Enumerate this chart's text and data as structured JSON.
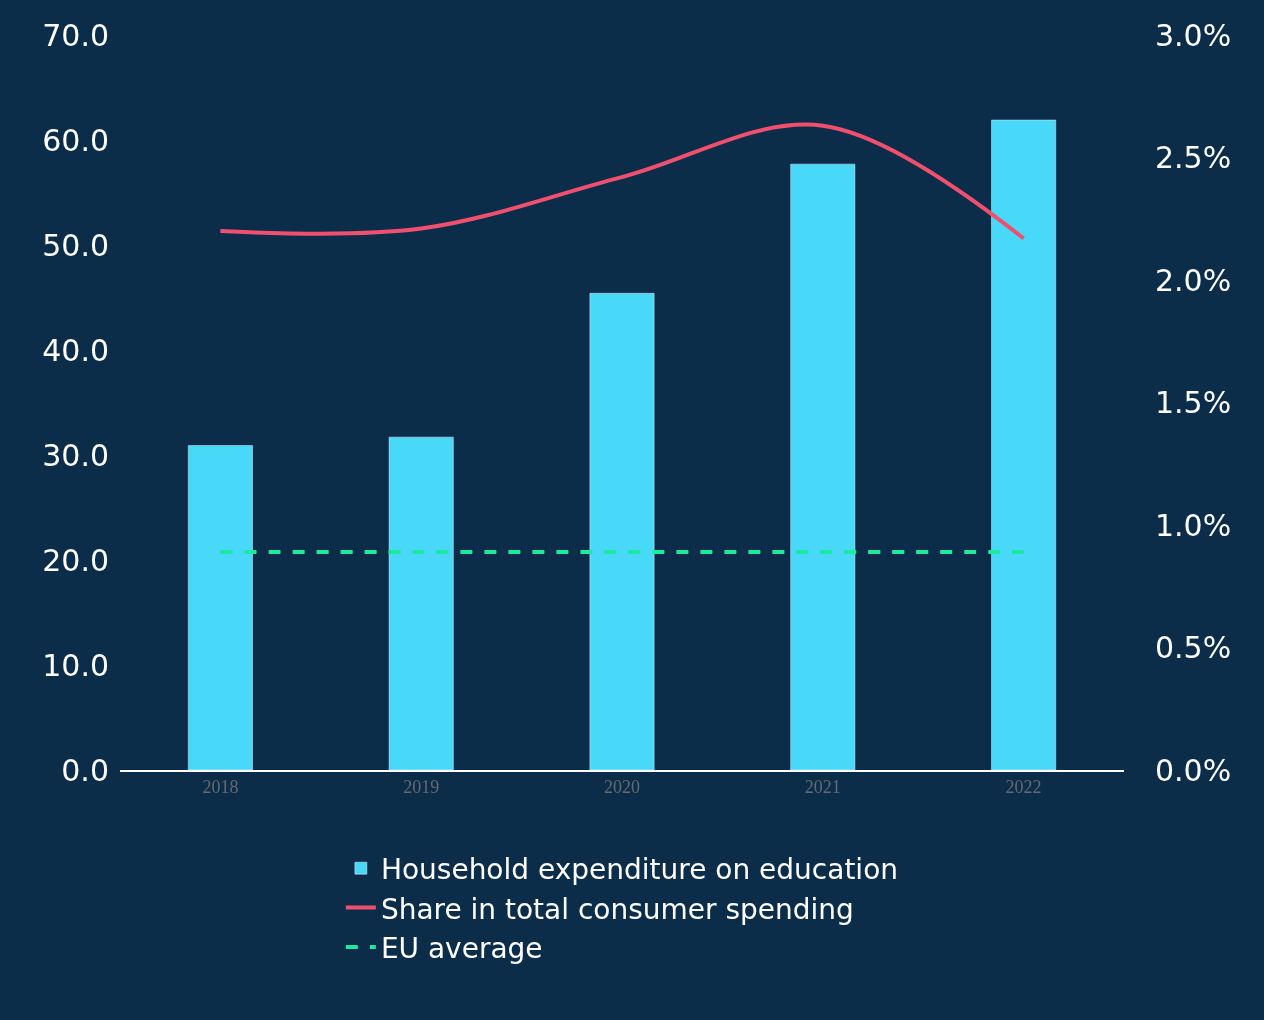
{
  "chart_data": {
    "type": "bar",
    "categories": [
      "2018",
      "2019",
      "2020",
      "2021",
      "2022"
    ],
    "series": [
      {
        "name": "Household expenditure on education",
        "color": "#48d8f8",
        "values": [
          30.9,
          31.7,
          45.4,
          57.7,
          61.9
        ]
      },
      {
        "name": "Share in total consumer spending",
        "type": "line",
        "axis": "y2",
        "color": "#f0506e",
        "line_style": "solid",
        "values": [
          2.2,
          2.21,
          2.42,
          2.63,
          2.17
        ]
      },
      {
        "name": "EU average",
        "type": "line",
        "axis": "y2",
        "color": "#1de9a0",
        "line_style": "dashed",
        "values": [
          0.89,
          0.89,
          0.89,
          0.89,
          0.89
        ]
      }
    ],
    "ylim": [
      0,
      70
    ],
    "yticks": [
      {
        "value": 0,
        "label": "0.0"
      },
      {
        "value": 10,
        "label": "10.0"
      },
      {
        "value": 20,
        "label": "20.0"
      },
      {
        "value": 30,
        "label": "30.0"
      },
      {
        "value": 40,
        "label": "40.0"
      },
      {
        "value": 50,
        "label": "50.0"
      },
      {
        "value": 60,
        "label": "60.0"
      },
      {
        "value": 70,
        "label": "70.0"
      }
    ],
    "y2lim": [
      0,
      3
    ],
    "y2ticks": [
      {
        "value": 0,
        "label": "0.0%"
      },
      {
        "value": 0.5,
        "label": "0.5%"
      },
      {
        "value": 1,
        "label": "1.0%"
      },
      {
        "value": 1.5,
        "label": "1.5%"
      },
      {
        "value": 2,
        "label": "2.0%"
      },
      {
        "value": 2.5,
        "label": "2.5%"
      },
      {
        "value": 3,
        "label": "3.0%"
      }
    ],
    "grid": false,
    "legend": "bottom",
    "marker": "none"
  }
}
